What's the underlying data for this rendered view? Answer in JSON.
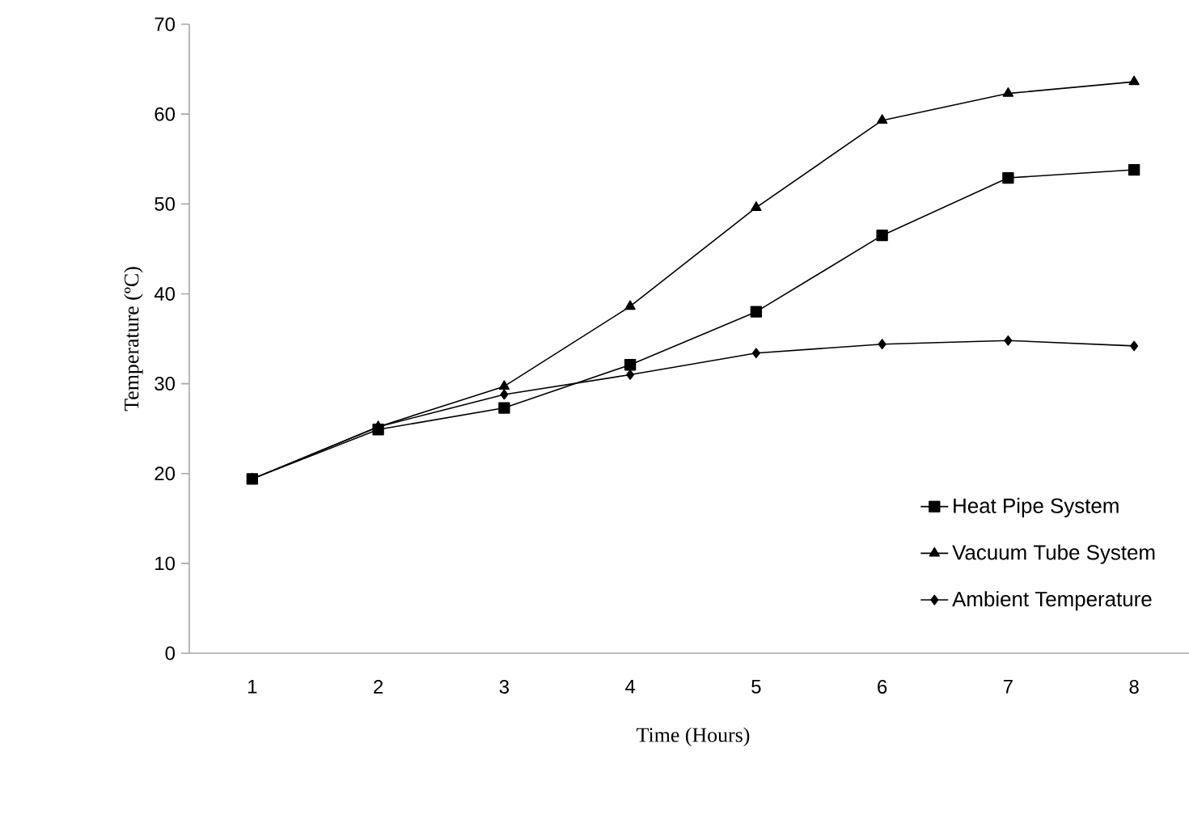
{
  "chart_data": {
    "type": "line",
    "xlabel": "Time (Hours)",
    "ylabel": "Temperature (ºC)",
    "categories": [
      "1",
      "2",
      "3",
      "4",
      "5",
      "6",
      "7",
      "8"
    ],
    "series": [
      {
        "name": "Heat Pipe System",
        "color": "#000000",
        "marker": "square",
        "values": [
          19.4,
          24.9,
          27.3,
          32.1,
          38.0,
          46.5,
          52.9,
          53.8
        ]
      },
      {
        "name": "Vacuum Tube System",
        "color": "#000000",
        "marker": "triangle",
        "values": [
          19.4,
          25.2,
          29.7,
          38.6,
          49.6,
          59.3,
          62.3,
          63.6
        ]
      },
      {
        "name": "Ambient Temperature",
        "color": "#000000",
        "marker": "diamond",
        "values": [
          19.4,
          25.2,
          28.8,
          31.0,
          33.4,
          34.4,
          34.8,
          34.2
        ]
      }
    ],
    "ylim": [
      0,
      70
    ],
    "yticks": [
      0,
      10,
      20,
      30,
      40,
      50,
      60,
      70
    ],
    "grid": false,
    "legend": "bottom right",
    "line_style": "solid"
  }
}
